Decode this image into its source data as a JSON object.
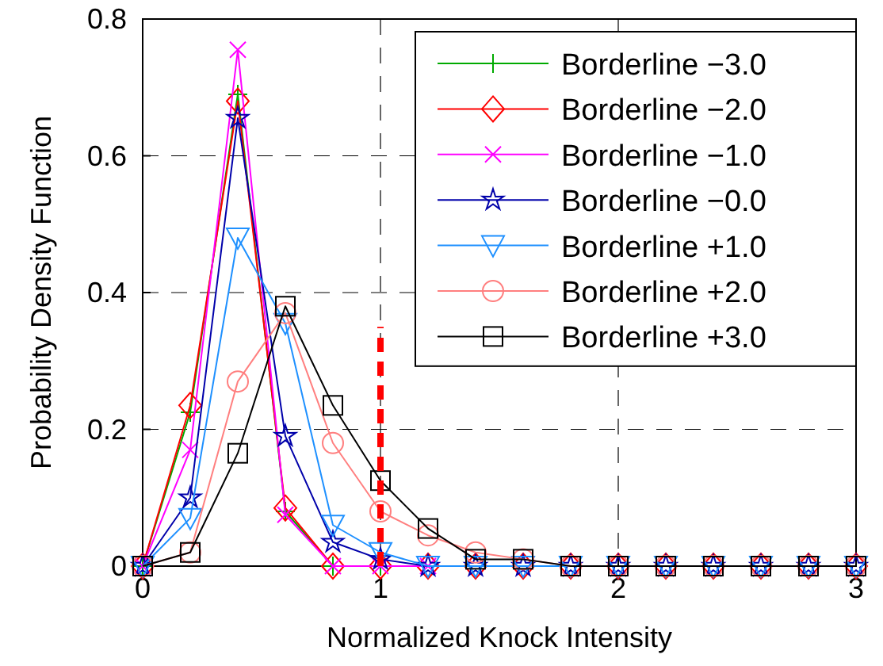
{
  "chart_data": {
    "type": "line",
    "xlabel": "Normalized Knock Intensity",
    "ylabel": "Probability Density Function",
    "x": [
      0,
      0.2,
      0.4,
      0.6,
      0.8,
      1.0,
      1.2,
      1.4,
      1.6,
      1.8,
      2.0,
      2.2,
      2.4,
      2.6,
      2.8,
      3.0
    ],
    "xlim": [
      0,
      3
    ],
    "ylim": [
      0,
      0.8
    ],
    "xticks": [
      0,
      1,
      2,
      3
    ],
    "yticks": [
      0,
      0.2,
      0.4,
      0.6,
      0.8
    ],
    "grid": true,
    "legend": "top right",
    "series": [
      {
        "name": "Borderline −3.0",
        "color": "#00aa00",
        "marker": "cross",
        "values": [
          0,
          0.225,
          0.69,
          0.08,
          0,
          0,
          null,
          null,
          null,
          null,
          null,
          null,
          null,
          null,
          null,
          null
        ]
      },
      {
        "name": "Borderline −2.0",
        "color": "#ff0000",
        "marker": "diamond",
        "values": [
          0,
          0.235,
          0.68,
          0.085,
          0,
          0,
          0,
          0,
          0,
          0,
          0,
          0,
          0,
          0,
          0,
          0
        ]
      },
      {
        "name": "Borderline −1.0",
        "color": "#ff00ff",
        "marker": "x",
        "values": [
          0,
          0.17,
          0.755,
          0.075,
          0,
          0,
          0,
          null,
          null,
          null,
          null,
          null,
          null,
          null,
          null,
          null
        ]
      },
      {
        "name": "Borderline −0.0",
        "color": "#0000aa",
        "marker": "star",
        "values": [
          0,
          0.1,
          0.655,
          0.19,
          0.035,
          0.01,
          0,
          0,
          0,
          0,
          0,
          0,
          0,
          0,
          0,
          0
        ]
      },
      {
        "name": "Borderline +1.0",
        "color": "#1e90ff",
        "marker": "triangle",
        "values": [
          0,
          0.07,
          0.48,
          0.355,
          0.06,
          0.02,
          0,
          0,
          0,
          0,
          0,
          0,
          0,
          0,
          0,
          0
        ]
      },
      {
        "name": "Borderline +2.0",
        "color": "#ff7f7f",
        "marker": "circle",
        "values": [
          0,
          0.02,
          0.27,
          0.37,
          0.18,
          0.08,
          0.045,
          0.02,
          0.01,
          0,
          0,
          0,
          0,
          0,
          0,
          0
        ]
      },
      {
        "name": "Borderline +3.0",
        "color": "#000000",
        "marker": "square",
        "values": [
          0,
          0.02,
          0.165,
          0.38,
          0.235,
          0.125,
          0.055,
          0.01,
          0.01,
          0,
          0,
          0,
          0,
          0,
          0,
          0
        ]
      },
      {
        "x": [
          1,
          1
        ],
        "values": [
          0,
          0.35
        ],
        "color": "#ff0000",
        "line_style": "dashed",
        "marker": "none"
      }
    ]
  }
}
